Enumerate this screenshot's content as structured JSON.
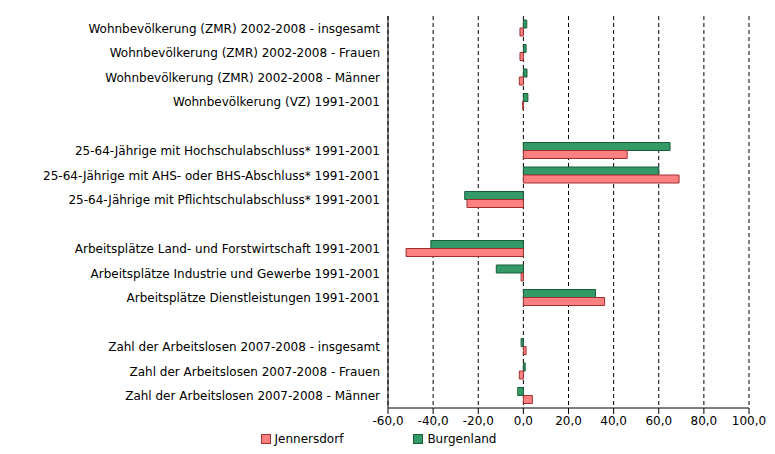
{
  "chart_data": {
    "type": "bar",
    "orientation": "horizontal",
    "grid": true,
    "legend": "bottom",
    "categories": [
      "Wohnbevölkerung (ZMR) 2002-2008 - insgesamt",
      "Wohnbevölkerung (ZMR) 2002-2008 - Frauen",
      "Wohnbevölkerung (ZMR) 2002-2008 - Männer",
      "Wohnbevölkerung (VZ) 1991-2001",
      null,
      "25-64-Jährige mit Hochschulabschluss* 1991-2001",
      "25-64-Jährige mit AHS- oder BHS-Abschluss* 1991-2001",
      "25-64-Jährige mit Pflichtschulabschluss* 1991-2001",
      null,
      "Arbeitsplätze Land- und Forstwirtschaft 1991-2001",
      "Arbeitsplätze Industrie und Gewerbe 1991-2001",
      "Arbeitsplätze Dienstleistungen 1991-2001",
      null,
      "Zahl der Arbeitslosen 2007-2008 - insgesamt",
      "Zahl der Arbeitslosen 2007-2008 - Frauen",
      "Zahl der Arbeitslosen 2007-2008 - Männer"
    ],
    "series": [
      {
        "name": "Jennersdorf",
        "color": "#ff8080",
        "values": [
          -1.5,
          -1.5,
          -1.8,
          -0.3,
          null,
          46,
          69,
          -25,
          null,
          -52,
          -1,
          36,
          null,
          1.2,
          -1.8,
          4
        ]
      },
      {
        "name": "Burgenland",
        "color": "#339966",
        "values": [
          1.5,
          1.2,
          1.6,
          2.0,
          null,
          65,
          60,
          -26,
          null,
          -41,
          -12,
          32,
          null,
          -1,
          0.8,
          -2.5
        ]
      }
    ],
    "xlim": [
      -60,
      100
    ],
    "xticks": [
      {
        "value": -60,
        "label": "-60,0"
      },
      {
        "value": -40,
        "label": "-40,0"
      },
      {
        "value": -20,
        "label": "-20,0"
      },
      {
        "value": 0,
        "label": "0,0"
      },
      {
        "value": 20,
        "label": "20,0"
      },
      {
        "value": 40,
        "label": "40,0"
      },
      {
        "value": 60,
        "label": "60,0"
      },
      {
        "value": 80,
        "label": "80,0"
      },
      {
        "value": 100,
        "label": "100,0"
      }
    ]
  }
}
